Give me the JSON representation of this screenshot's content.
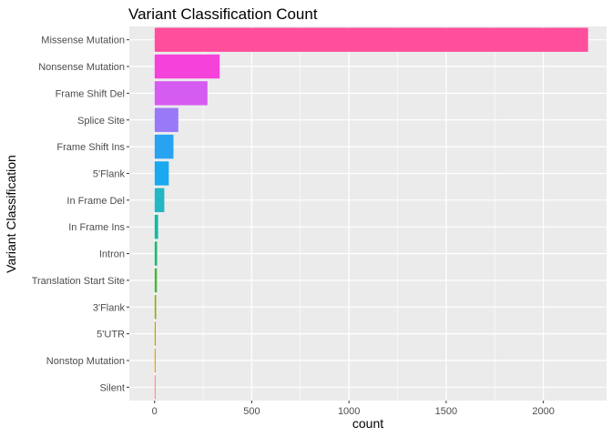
{
  "chart_data": {
    "type": "bar",
    "orientation": "horizontal",
    "title": "Variant Classification Count",
    "xlabel": "count",
    "ylabel": "Variant Classification",
    "xlim": [
      -130,
      2325
    ],
    "xticks": [
      0,
      500,
      1000,
      1500,
      2000
    ],
    "grid": true,
    "legend": "none",
    "categories": [
      "Missense Mutation",
      "Nonsense Mutation",
      "Frame Shift Del",
      "Splice Site",
      "Frame Shift Ins",
      "5'Flank",
      "In Frame Del",
      "In Frame Ins",
      "Intron",
      "Translation Start Site",
      "3'Flank",
      "5'UTR",
      "Nonstop Mutation",
      "Silent"
    ],
    "values": [
      2230,
      335,
      272,
      122,
      97,
      73,
      50,
      18,
      13,
      12,
      8,
      6,
      5,
      4
    ],
    "colors": [
      "#FF4E9C",
      "#F542DA",
      "#D55CF0",
      "#9A79F7",
      "#28A3F2",
      "#1AA9F0",
      "#25B6C3",
      "#16B8A2",
      "#1FB877",
      "#4AB43C",
      "#8EA910",
      "#B5A200",
      "#D39200",
      "#F8766D"
    ],
    "panel_background": "#EBEBEB",
    "grid_color": "#FFFFFF"
  }
}
